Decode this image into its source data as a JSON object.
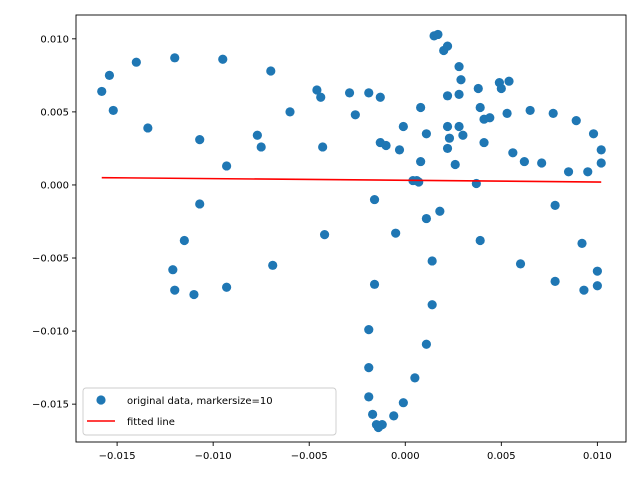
{
  "chart_data": {
    "type": "scatter",
    "title": "",
    "xlabel": "",
    "ylabel": "",
    "xlim": [
      -0.01714,
      0.01149
    ],
    "ylim": [
      -0.01759,
      0.01163
    ],
    "grid": false,
    "legend_placement": "lower-left",
    "x_ticks": [
      -0.015,
      -0.01,
      -0.005,
      0.0,
      0.005,
      0.01
    ],
    "x_tick_labels": [
      "−0.015",
      "−0.010",
      "−0.005",
      "0.000",
      "0.005",
      "0.010"
    ],
    "y_ticks": [
      -0.015,
      -0.01,
      -0.005,
      0.0,
      0.005,
      0.01
    ],
    "y_tick_labels": [
      "−0.015",
      "−0.010",
      "−0.005",
      "0.000",
      "0.005",
      "0.010"
    ],
    "series": [
      {
        "name": "original data, markersize=10",
        "kind": "scatter",
        "color": "#1f77b4",
        "points": [
          [
            -0.0158,
            0.0064
          ],
          [
            -0.0154,
            0.0075
          ],
          [
            -0.0152,
            0.0051
          ],
          [
            -0.014,
            0.0084
          ],
          [
            -0.0134,
            0.0039
          ],
          [
            -0.012,
            0.0087
          ],
          [
            -0.0095,
            0.0086
          ],
          [
            -0.007,
            0.0078
          ],
          [
            -0.0107,
            0.0031
          ],
          [
            -0.0093,
            0.0013
          ],
          [
            -0.0077,
            0.0034
          ],
          [
            -0.0075,
            0.0026
          ],
          [
            -0.006,
            0.005
          ],
          [
            -0.0046,
            0.0065
          ],
          [
            -0.0044,
            0.006
          ],
          [
            -0.0043,
            0.0026
          ],
          [
            -0.0029,
            0.0063
          ],
          [
            -0.0026,
            0.0048
          ],
          [
            -0.0019,
            0.0063
          ],
          [
            -0.0013,
            0.006
          ],
          [
            -0.0013,
            0.0029
          ],
          [
            -0.001,
            0.0027
          ],
          [
            -0.0003,
            0.0024
          ],
          [
            -0.0001,
            0.004
          ],
          [
            0.0008,
            0.0053
          ],
          [
            0.0011,
            0.0035
          ],
          [
            0.0008,
            0.0016
          ],
          [
            0.0004,
            0.0003
          ],
          [
            0.0006,
            0.0003
          ],
          [
            0.0007,
            0.0002
          ],
          [
            -0.0107,
            -0.0013
          ],
          [
            -0.0115,
            -0.0038
          ],
          [
            -0.0042,
            -0.0034
          ],
          [
            -0.0069,
            -0.0055
          ],
          [
            -0.0121,
            -0.0058
          ],
          [
            -0.012,
            -0.0072
          ],
          [
            -0.011,
            -0.0075
          ],
          [
            -0.0093,
            -0.007
          ],
          [
            -0.0016,
            -0.001
          ],
          [
            -0.0005,
            -0.0033
          ],
          [
            -0.0016,
            -0.0068
          ],
          [
            0.0011,
            -0.0023
          ],
          [
            0.0018,
            -0.0018
          ],
          [
            0.0014,
            -0.0052
          ],
          [
            0.0014,
            -0.0082
          ],
          [
            0.0011,
            -0.0109
          ],
          [
            -0.0019,
            -0.0099
          ],
          [
            -0.0019,
            -0.0125
          ],
          [
            -0.0019,
            -0.0145
          ],
          [
            -0.0017,
            -0.0157
          ],
          [
            -0.0015,
            -0.0164
          ],
          [
            -0.0012,
            -0.0164
          ],
          [
            -0.0014,
            -0.0166
          ],
          [
            -0.0006,
            -0.0158
          ],
          [
            -0.0001,
            -0.0149
          ],
          [
            0.0005,
            -0.0132
          ],
          [
            0.0015,
            0.0102
          ],
          [
            0.0017,
            0.0103
          ],
          [
            0.002,
            0.0092
          ],
          [
            0.0022,
            0.0095
          ],
          [
            0.0028,
            0.0081
          ],
          [
            0.0029,
            0.0072
          ],
          [
            0.0022,
            0.0061
          ],
          [
            0.0028,
            0.0062
          ],
          [
            0.0022,
            0.004
          ],
          [
            0.0028,
            0.004
          ],
          [
            0.0023,
            0.0032
          ],
          [
            0.003,
            0.0034
          ],
          [
            0.0022,
            0.0025
          ],
          [
            0.0026,
            0.0014
          ],
          [
            0.0038,
            0.0066
          ],
          [
            0.0039,
            0.0053
          ],
          [
            0.0041,
            0.0045
          ],
          [
            0.0044,
            0.0046
          ],
          [
            0.0041,
            0.0029
          ],
          [
            0.0049,
            0.007
          ],
          [
            0.005,
            0.0066
          ],
          [
            0.0054,
            0.0071
          ],
          [
            0.0053,
            0.0049
          ],
          [
            0.0065,
            0.0051
          ],
          [
            0.0056,
            0.0022
          ],
          [
            0.0062,
            0.0016
          ],
          [
            0.0071,
            0.0015
          ],
          [
            0.0077,
            0.0049
          ],
          [
            0.0089,
            0.0044
          ],
          [
            0.0098,
            0.0035
          ],
          [
            0.0102,
            0.0024
          ],
          [
            0.0102,
            0.0015
          ],
          [
            0.0085,
            0.0009
          ],
          [
            0.0095,
            0.0009
          ],
          [
            0.0037,
            0.0001
          ],
          [
            0.0078,
            -0.0014
          ],
          [
            0.0039,
            -0.0038
          ],
          [
            0.006,
            -0.0054
          ],
          [
            0.0078,
            -0.0066
          ],
          [
            0.0092,
            -0.004
          ],
          [
            0.0093,
            -0.0072
          ],
          [
            0.01,
            -0.0059
          ],
          [
            0.01,
            -0.0069
          ]
        ]
      },
      {
        "name": "fitted line",
        "kind": "line",
        "color": "#ff0000",
        "points": [
          [
            -0.0158,
            0.0005
          ],
          [
            0.0102,
            0.0002
          ]
        ]
      }
    ]
  }
}
